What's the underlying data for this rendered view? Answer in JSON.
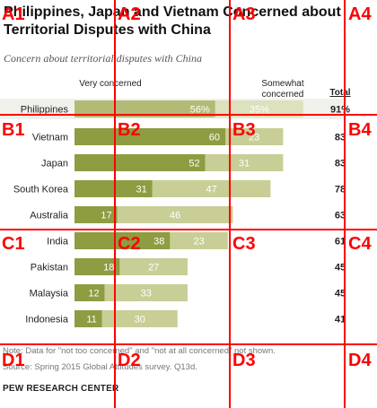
{
  "title": "Philippines, Japan and Vietnam Concerned about Territorial Disputes with China",
  "subtitle": "Concern about territorial disputes with China",
  "columns": {
    "very": "Very concerned",
    "somewhat": "Somewhat concerned",
    "total": "Total"
  },
  "colors": {
    "very": "#8e9c42",
    "somewhat": "#c8ce96",
    "highlight_very": "#b3ba76",
    "highlight_somewhat": "#dde1bd",
    "grid": "#ff0000"
  },
  "chart_data": {
    "type": "bar",
    "stacked": true,
    "orientation": "horizontal",
    "categories": [
      "Philippines",
      "Vietnam",
      "Japan",
      "South Korea",
      "Australia",
      "India",
      "Pakistan",
      "Malaysia",
      "Indonesia"
    ],
    "series": [
      {
        "name": "Very concerned",
        "values": [
          56,
          60,
          52,
          31,
          17,
          38,
          18,
          12,
          11
        ],
        "labels": [
          "56%",
          "60",
          "52",
          "31",
          "17",
          "38",
          "18",
          "12",
          "11"
        ]
      },
      {
        "name": "Somewhat concerned",
        "values": [
          35,
          23,
          31,
          47,
          46,
          23,
          27,
          33,
          30
        ],
        "labels": [
          "35%",
          "23",
          "31",
          "47",
          "46",
          "23",
          "27",
          "33",
          "30"
        ]
      }
    ],
    "totals": [
      91,
      83,
      83,
      78,
      63,
      61,
      45,
      45,
      41
    ],
    "total_labels": [
      "91%",
      "83",
      "83",
      "78",
      "63",
      "61",
      "45",
      "45",
      "41"
    ],
    "highlighted_category": "Philippines",
    "xlim": [
      0,
      100
    ]
  },
  "note": "Note: Data for \"not too concerned\" and \"not at all concerned\" not shown.",
  "source": "Source: Spring 2015 Global Attitudes survey. Q13d.",
  "brand": "PEW RESEARCH CENTER",
  "grid_overlay": {
    "cells": [
      "A1",
      "A2",
      "A3",
      "A4",
      "B1",
      "B2",
      "B3",
      "B4",
      "C1",
      "C2",
      "C3",
      "C4",
      "D1",
      "D2",
      "D3",
      "D4"
    ]
  }
}
